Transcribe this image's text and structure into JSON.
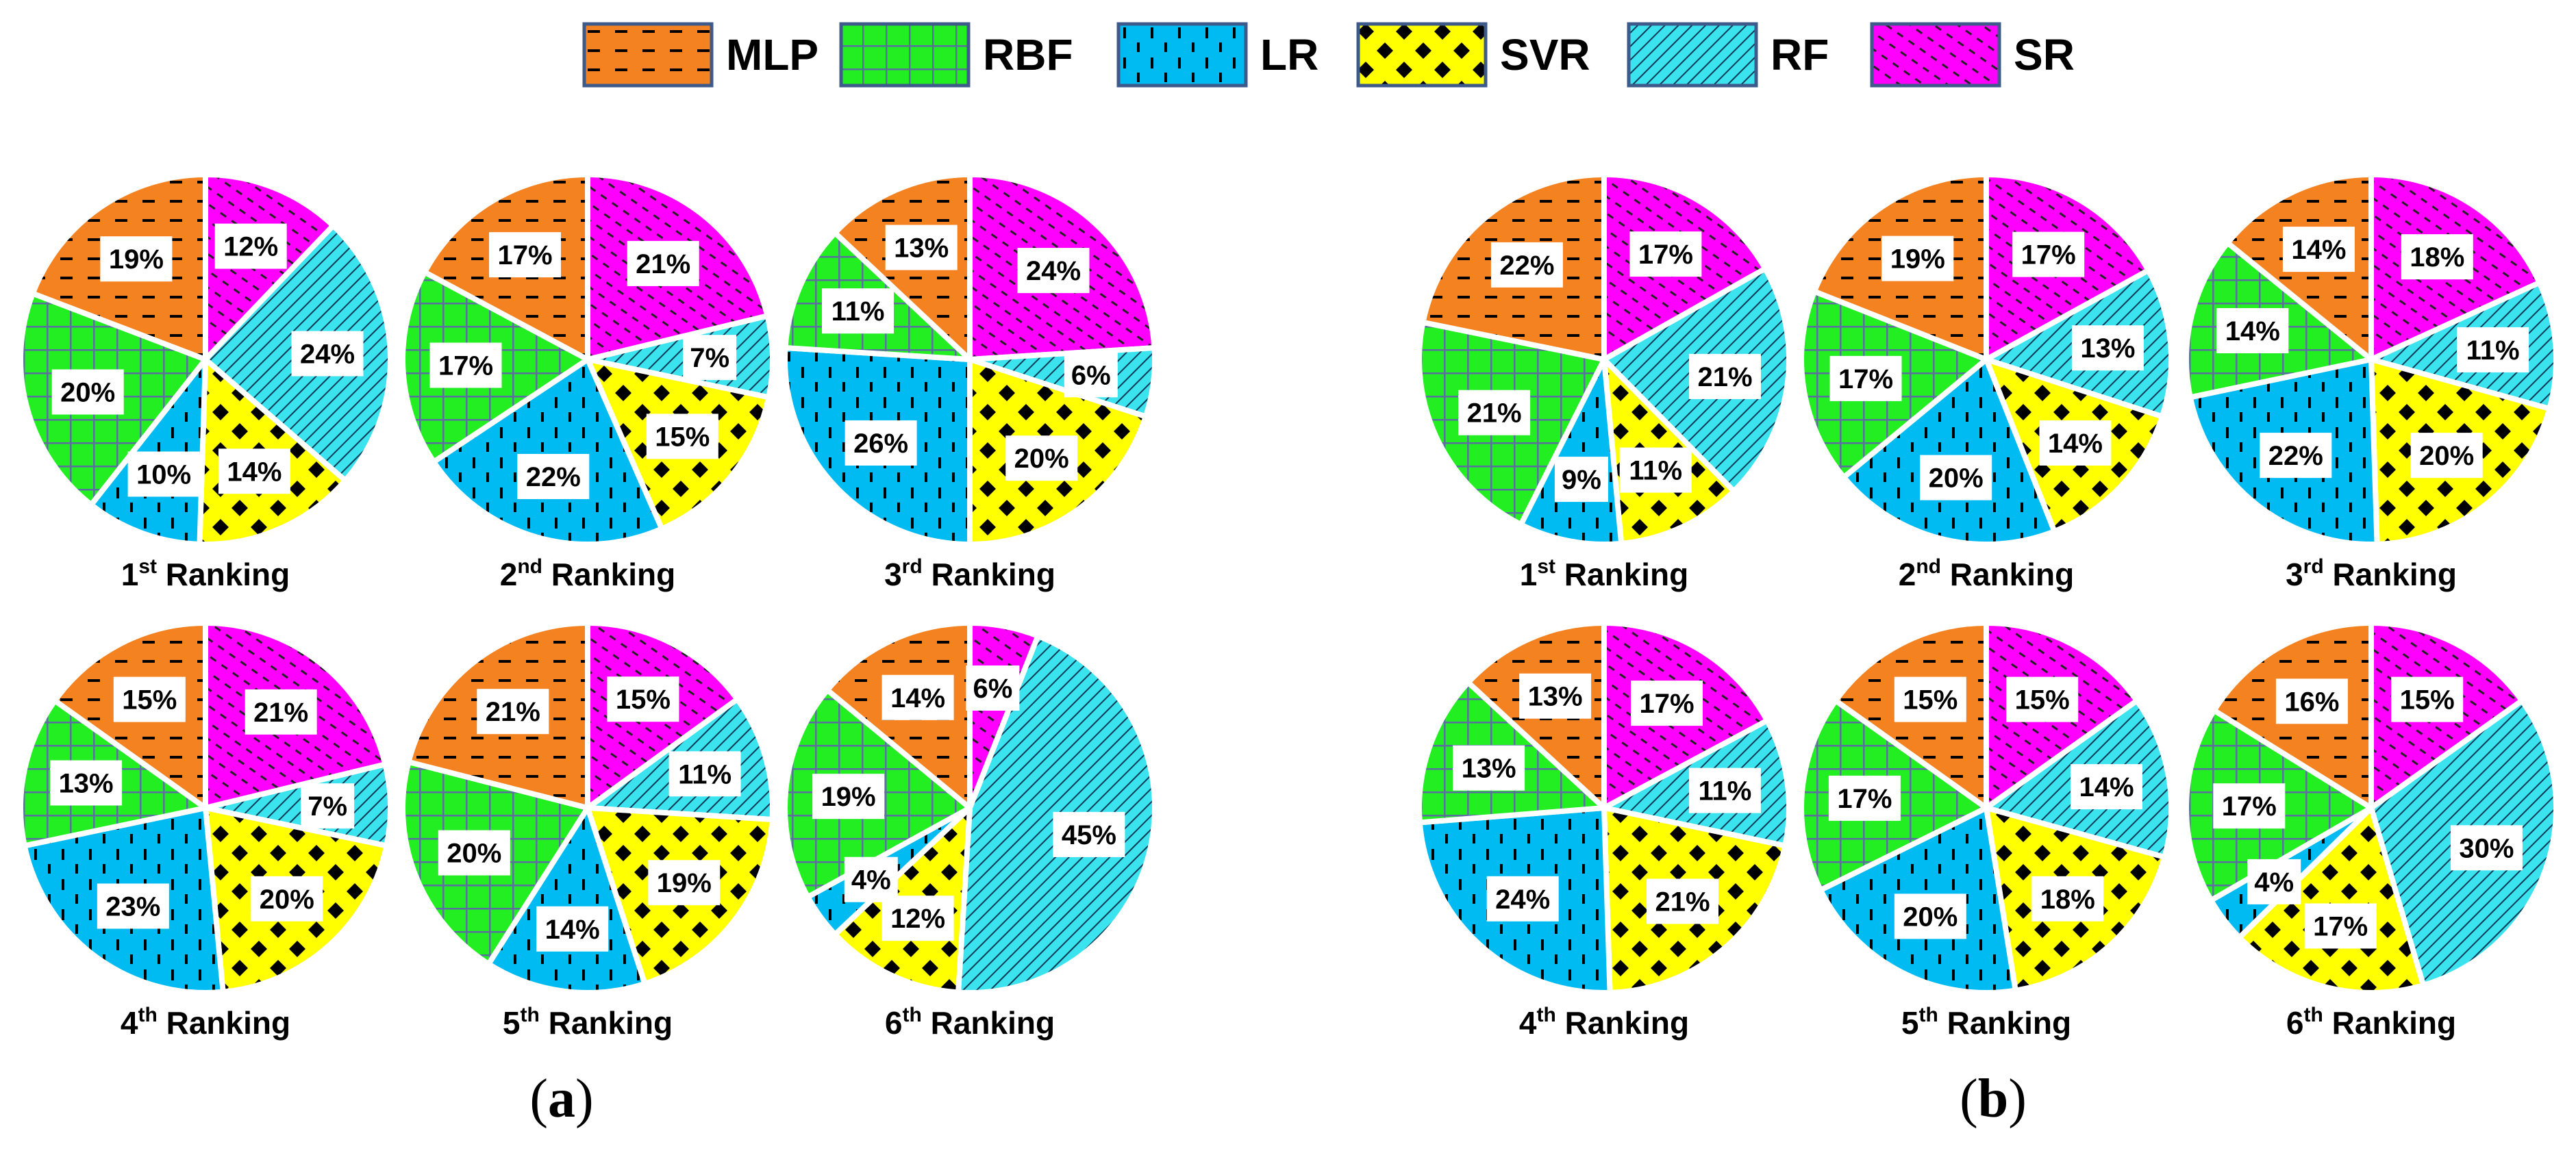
{
  "legend": [
    {
      "label": "MLP",
      "color": "#f58220",
      "pattern": "dash-icon"
    },
    {
      "label": "RBF",
      "color": "#22ee22",
      "pattern": "grid-icon"
    },
    {
      "label": "LR",
      "color": "#00bbf2",
      "pattern": "vertical-dash-icon"
    },
    {
      "label": "SVR",
      "color": "#ffff00",
      "pattern": "diamond-dots-icon"
    },
    {
      "label": "RF",
      "color": "#3be3ee",
      "pattern": "diagonal-hatch-icon"
    },
    {
      "label": "SR",
      "color": "#ff00ff",
      "pattern": "diagonal-dash-icon"
    }
  ],
  "panels": [
    {
      "letter": "a"
    },
    {
      "letter": "b"
    }
  ],
  "chart_data": [
    {
      "type": "pie",
      "panel": "a",
      "title_base": "1",
      "title_sup": "st",
      "title_rest": " Ranking",
      "categories": [
        "SR",
        "RF",
        "SVR",
        "LR",
        "RBF",
        "MLP"
      ],
      "values": [
        12,
        24,
        14,
        10,
        20,
        19
      ],
      "labels": [
        "12%",
        "24%",
        "14%",
        "10%",
        "20%",
        "19%"
      ]
    },
    {
      "type": "pie",
      "panel": "a",
      "title_base": "2",
      "title_sup": "nd",
      "title_rest": " Ranking",
      "categories": [
        "SR",
        "RF",
        "SVR",
        "LR",
        "RBF",
        "MLP"
      ],
      "values": [
        21,
        7,
        15,
        22,
        17,
        17
      ],
      "labels": [
        "21%",
        "7%",
        "15%",
        "22%",
        "17%",
        "17%"
      ]
    },
    {
      "type": "pie",
      "panel": "a",
      "title_base": "3",
      "title_sup": "rd",
      "title_rest": " Ranking",
      "categories": [
        "SR",
        "RF",
        "SVR",
        "LR",
        "RBF",
        "MLP"
      ],
      "values": [
        24,
        6,
        20,
        26,
        11,
        13
      ],
      "labels": [
        "24%",
        "6%",
        "20%",
        "26%",
        "11%",
        "13%"
      ]
    },
    {
      "type": "pie",
      "panel": "a",
      "title_base": "4",
      "title_sup": "th",
      "title_rest": " Ranking",
      "categories": [
        "SR",
        "RF",
        "SVR",
        "LR",
        "RBF",
        "MLP"
      ],
      "values": [
        21,
        7,
        20,
        23,
        13,
        15
      ],
      "labels": [
        "21%",
        "7%",
        "20%",
        "23%",
        "13%",
        "15%"
      ]
    },
    {
      "type": "pie",
      "panel": "a",
      "title_base": "5",
      "title_sup": "th",
      "title_rest": " Ranking",
      "categories": [
        "SR",
        "RF",
        "SVR",
        "LR",
        "RBF",
        "MLP"
      ],
      "values": [
        15,
        11,
        19,
        14,
        20,
        21
      ],
      "labels": [
        "15%",
        "11%",
        "19%",
        "14%",
        "20%",
        "21%"
      ]
    },
    {
      "type": "pie",
      "panel": "a",
      "title_base": "6",
      "title_sup": "th",
      "title_rest": " Ranking",
      "categories": [
        "SR",
        "RF",
        "SVR",
        "LR",
        "RBF",
        "MLP"
      ],
      "values": [
        6,
        45,
        12,
        4,
        19,
        14
      ],
      "labels": [
        "6%",
        "45%",
        "12%",
        "4%",
        "19%",
        "14%"
      ]
    },
    {
      "type": "pie",
      "panel": "b",
      "title_base": "1",
      "title_sup": "st",
      "title_rest": " Ranking",
      "categories": [
        "SR",
        "RF",
        "SVR",
        "LR",
        "RBF",
        "MLP"
      ],
      "values": [
        17,
        21,
        11,
        9,
        21,
        22
      ],
      "labels": [
        "17%",
        "21%",
        "11%",
        "9%",
        "21%",
        "22%"
      ]
    },
    {
      "type": "pie",
      "panel": "b",
      "title_base": "2",
      "title_sup": "nd",
      "title_rest": " Ranking",
      "categories": [
        "SR",
        "RF",
        "SVR",
        "LR",
        "RBF",
        "MLP"
      ],
      "values": [
        17,
        13,
        14,
        20,
        17,
        19
      ],
      "labels": [
        "17%",
        "13%",
        "14%",
        "20%",
        "17%",
        "19%"
      ]
    },
    {
      "type": "pie",
      "panel": "b",
      "title_base": "3",
      "title_sup": "rd",
      "title_rest": " Ranking",
      "categories": [
        "SR",
        "RF",
        "SVR",
        "LR",
        "RBF",
        "MLP"
      ],
      "values": [
        18,
        11,
        20,
        22,
        14,
        14
      ],
      "labels": [
        "18%",
        "11%",
        "20%",
        "22%",
        "14%",
        "14%"
      ]
    },
    {
      "type": "pie",
      "panel": "b",
      "title_base": "4",
      "title_sup": "th",
      "title_rest": " Ranking",
      "categories": [
        "SR",
        "RF",
        "SVR",
        "LR",
        "RBF",
        "MLP"
      ],
      "values": [
        17,
        11,
        21,
        24,
        13,
        13
      ],
      "labels": [
        "17%",
        "11%",
        "21%",
        "24%",
        "13%",
        "13%"
      ]
    },
    {
      "type": "pie",
      "panel": "b",
      "title_base": "5",
      "title_sup": "th",
      "title_rest": " Ranking",
      "categories": [
        "SR",
        "RF",
        "SVR",
        "LR",
        "RBF",
        "MLP"
      ],
      "values": [
        15,
        14,
        18,
        20,
        17,
        15
      ],
      "labels": [
        "15%",
        "14%",
        "18%",
        "20%",
        "17%",
        "15%"
      ]
    },
    {
      "type": "pie",
      "panel": "b",
      "title_base": "6",
      "title_sup": "th",
      "title_rest": " Ranking",
      "categories": [
        "SR",
        "RF",
        "SVR",
        "LR",
        "RBF",
        "MLP"
      ],
      "values": [
        15,
        30,
        17,
        4,
        17,
        16
      ],
      "labels": [
        "15%",
        "30%",
        "17%",
        "4%",
        "17%",
        "16%"
      ]
    }
  ]
}
